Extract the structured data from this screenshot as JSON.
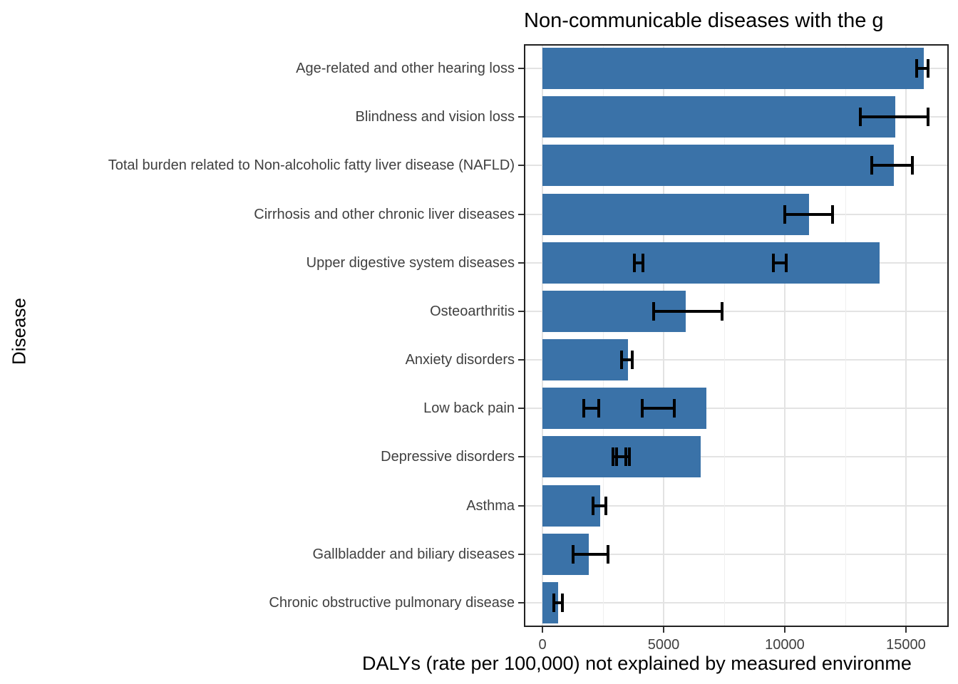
{
  "chart_data": {
    "type": "bar",
    "orientation": "horizontal",
    "title": "Non-communicable diseases with the g",
    "title_note": "clipped at right edge of image",
    "xlabel": "DALYs (rate per 100,000) not explained by measured environme",
    "xlabel_note": "clipped at right edge of image",
    "ylabel": "Disease",
    "x_ticks": [
      0,
      5000,
      10000,
      15000
    ],
    "x_minor_gridlines": [
      2500,
      7500,
      12500
    ],
    "x_domain": [
      -765,
      16765
    ],
    "grid": "on",
    "legend": "none",
    "categories": [
      "Age-related and other hearing loss",
      "Blindness and vision loss",
      "Total burden related to Non-alcoholic fatty liver disease (NAFLD)",
      "Cirrhosis and other chronic liver diseases",
      "Upper digestive system diseases",
      "Osteoarthritis",
      "Anxiety disorders",
      "Low back pain",
      "Depressive disorders",
      "Asthma",
      "Gallbladder and biliary diseases",
      "Chronic obstructive pulmonary disease"
    ],
    "values": [
      15750,
      14550,
      14500,
      11000,
      13900,
      5900,
      3530,
      6760,
      6530,
      2380,
      1910,
      650
    ],
    "error_bars": [
      [
        [
          15440,
          15910
        ]
      ],
      [
        [
          13120,
          15910
        ]
      ],
      [
        [
          13590,
          15260
        ]
      ],
      [
        [
          10000,
          11970
        ]
      ],
      [
        [
          3790,
          4150
        ],
        [
          9530,
          10060
        ]
      ],
      [
        [
          4590,
          7410
        ]
      ],
      [
        [
          3270,
          3710
        ]
      ],
      [
        [
          1700,
          2320
        ],
        [
          4120,
          5440
        ]
      ],
      [
        [
          2910,
          3440
        ],
        [
          3060,
          3590
        ]
      ],
      [
        [
          2090,
          2620
        ]
      ],
      [
        [
          1260,
          2700
        ]
      ],
      [
        [
          470,
          825
        ]
      ]
    ],
    "colors": {
      "bar_fill": "#3a72a8",
      "error_bar": "#000000",
      "axis_text": "#404040",
      "title_text": "#000000",
      "gridline_major": "#e3e3e3",
      "gridline_minor": "#efefef",
      "panel_border": "#222222",
      "background": "#ffffff"
    }
  }
}
